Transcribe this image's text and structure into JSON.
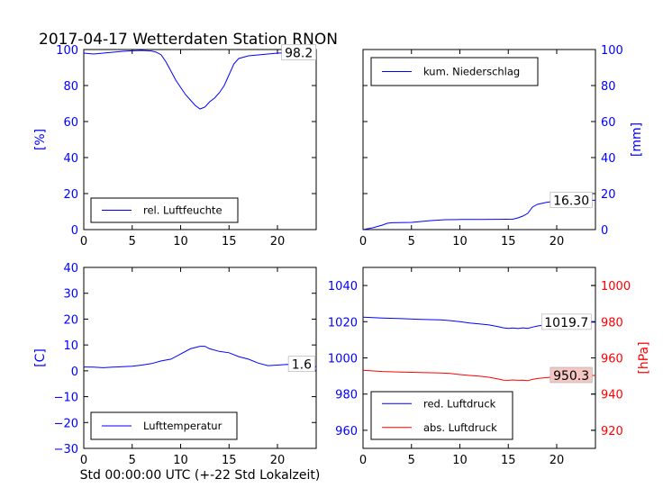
{
  "page_title": "2017-04-17 Wetterdaten Station RNON",
  "xlabel_bottom": "Std 00:00:00 UTC (+-22 Std Lokalzeit)",
  "colors": {
    "blue": "#0000ff",
    "red": "#ff0000",
    "black": "#000000",
    "annot_fill_red": "#f4c7c3"
  },
  "chart_data": [
    {
      "id": "humidity",
      "type": "line",
      "title": "",
      "ylabel": "[%]",
      "ylabel_side": "left",
      "ylabel_color": "#0000ff",
      "xlim": [
        0,
        24
      ],
      "ylim": [
        0,
        100
      ],
      "xticks": [
        0,
        5,
        10,
        15,
        20
      ],
      "yticks": [
        0,
        20,
        40,
        60,
        80,
        100
      ],
      "ytick_side": "left",
      "ytick_color": "#0000ff",
      "grid": false,
      "legend": {
        "position": "lower-left",
        "entries": [
          {
            "label": "rel. Luftfeuchte",
            "color": "#0000ff"
          }
        ]
      },
      "annotation": {
        "text": "98.2",
        "x": 22.2,
        "y": 98.2,
        "fill": "#ffffff"
      },
      "series": [
        {
          "name": "rel. Luftfeuchte",
          "color": "#0000ff",
          "axis": "left",
          "x": [
            0,
            1,
            2,
            3,
            4,
            5,
            6,
            7,
            7.5,
            8,
            8.5,
            9,
            9.5,
            10,
            10.5,
            11,
            11.5,
            12,
            12.5,
            13,
            13.5,
            14,
            14.5,
            15,
            15.5,
            16,
            17,
            18,
            19,
            20,
            21,
            22,
            23,
            24
          ],
          "y": [
            98,
            97.5,
            98,
            98.5,
            99,
            99.3,
            99.5,
            99.2,
            98.5,
            97,
            93,
            88,
            83,
            79,
            75,
            72,
            69,
            67,
            68,
            71,
            73,
            76,
            80,
            86,
            92,
            95,
            96.5,
            97,
            97.5,
            98,
            98.2,
            98.2,
            98.2,
            98.2
          ]
        }
      ]
    },
    {
      "id": "precip",
      "type": "line",
      "title": "",
      "ylabel": "[mm]",
      "ylabel_side": "right",
      "ylabel_color": "#0000ff",
      "xlim": [
        0,
        24
      ],
      "ylim": [
        0,
        100
      ],
      "xticks": [
        0,
        5,
        10,
        15,
        20
      ],
      "yticks": [
        0,
        20,
        40,
        60,
        80,
        100
      ],
      "ytick_side": "right",
      "ytick_color": "#0000ff",
      "grid": false,
      "legend": {
        "position": "upper-left",
        "entries": [
          {
            "label": "kum. Niederschlag",
            "color": "#0000ff"
          }
        ]
      },
      "annotation": {
        "text": "16.30",
        "x": 21.5,
        "y": 16.3,
        "fill": "#ffffff"
      },
      "series": [
        {
          "name": "kum. Niederschlag",
          "color": "#0000ff",
          "axis": "right",
          "x": [
            0,
            1,
            2,
            2.5,
            3,
            5,
            7,
            8.5,
            10,
            12,
            14,
            15.5,
            16,
            16.5,
            17,
            17.5,
            18,
            19,
            20,
            21,
            22,
            23,
            24
          ],
          "y": [
            0,
            1,
            2.5,
            3.5,
            3.8,
            4,
            5,
            5.5,
            5.6,
            5.6,
            5.7,
            5.8,
            6.5,
            7.5,
            9,
            12.5,
            14,
            15.2,
            15.8,
            16.1,
            16.3,
            16.3,
            16.3
          ]
        }
      ]
    },
    {
      "id": "temperature",
      "type": "line",
      "title": "",
      "ylabel": "[C]",
      "ylabel_side": "left",
      "ylabel_color": "#0000ff",
      "xlim": [
        0,
        24
      ],
      "ylim": [
        -30,
        40
      ],
      "xticks": [
        0,
        5,
        10,
        15,
        20
      ],
      "yticks": [
        -30,
        -20,
        -10,
        0,
        10,
        20,
        30,
        40
      ],
      "ytick_side": "left",
      "ytick_color": "#0000ff",
      "grid": false,
      "legend": {
        "position": "lower-left",
        "entries": [
          {
            "label": "Lufttemperatur",
            "color": "#0000ff"
          }
        ]
      },
      "annotation": {
        "text": "1.6",
        "x": 22.5,
        "y": 2.5,
        "fill": "#ffffff"
      },
      "series": [
        {
          "name": "Lufttemperatur",
          "color": "#0000ff",
          "axis": "left",
          "x": [
            0,
            1,
            2,
            3,
            4,
            5,
            6,
            7,
            8,
            9,
            10,
            11,
            12,
            12.5,
            13,
            14,
            15,
            16,
            17,
            18,
            19,
            20,
            21,
            22,
            23,
            24
          ],
          "y": [
            1.5,
            1.4,
            1.2,
            1.4,
            1.6,
            1.8,
            2.2,
            2.8,
            3.8,
            4.5,
            6.5,
            8.5,
            9.5,
            9.5,
            8.5,
            7.5,
            7,
            5.5,
            4.5,
            3,
            2,
            2.2,
            2.5,
            2.4,
            2.0,
            1.6
          ]
        }
      ]
    },
    {
      "id": "pressure",
      "type": "line",
      "title": "",
      "ylabel": "[hPa]",
      "ylabel_side": "right",
      "ylabel_color": "#ff0000",
      "xlim": [
        0,
        24
      ],
      "ylim": [
        950,
        1050
      ],
      "ylim_right": [
        910,
        1010
      ],
      "xticks": [
        0,
        5,
        10,
        15,
        20
      ],
      "yticks": [
        960,
        980,
        1000,
        1020,
        1040
      ],
      "yticks_right": [
        920,
        940,
        960,
        980,
        1000
      ],
      "ytick_side": "left",
      "ytick_color": "#0000ff",
      "ytick_color_right": "#ff0000",
      "grid": false,
      "legend": {
        "position": "lower-left",
        "entries": [
          {
            "label": "red. Luftdruck",
            "color": "#0000ff"
          },
          {
            "label": "abs. Luftdruck",
            "color": "#ff0000"
          }
        ]
      },
      "annotations": [
        {
          "text": "1019.7",
          "x": 21,
          "y": 1019.7,
          "axis": "left",
          "fill": "#ffffff"
        },
        {
          "text": "950.3",
          "x": 21.5,
          "y": 950.3,
          "axis": "right",
          "fill": "#f4c7c3"
        }
      ],
      "series": [
        {
          "name": "red. Luftdruck",
          "color": "#0000ff",
          "axis": "left",
          "x": [
            0,
            2,
            4,
            6,
            8,
            9,
            10,
            11,
            12,
            13,
            14,
            14.5,
            15,
            15.5,
            16,
            16.5,
            17,
            17.5,
            18,
            19,
            20,
            21,
            22,
            23,
            24
          ],
          "y": [
            1022.5,
            1022,
            1021.7,
            1021.3,
            1021,
            1020.6,
            1020,
            1019.3,
            1018.8,
            1018.2,
            1017.2,
            1016.6,
            1016.3,
            1016.5,
            1016.2,
            1016.6,
            1016.3,
            1017,
            1017.6,
            1018.4,
            1018.9,
            1019.3,
            1019.6,
            1019.7,
            1019.7
          ]
        },
        {
          "name": "abs. Luftdruck",
          "color": "#ff0000",
          "axis": "right",
          "x": [
            0,
            2,
            4,
            6,
            8,
            9,
            10,
            11,
            12,
            13,
            14,
            14.5,
            15,
            15.5,
            16,
            16.5,
            17,
            17.5,
            18,
            19,
            20,
            21,
            22,
            23,
            24
          ],
          "y": [
            953.2,
            952.5,
            952.2,
            951.9,
            951.7,
            951.4,
            950.8,
            950.3,
            949.9,
            949.3,
            948.3,
            947.7,
            947.6,
            947.8,
            947.6,
            947.7,
            947.4,
            948.1,
            948.6,
            949.1,
            949.6,
            950,
            950.2,
            950.3,
            950.3
          ]
        }
      ]
    }
  ]
}
